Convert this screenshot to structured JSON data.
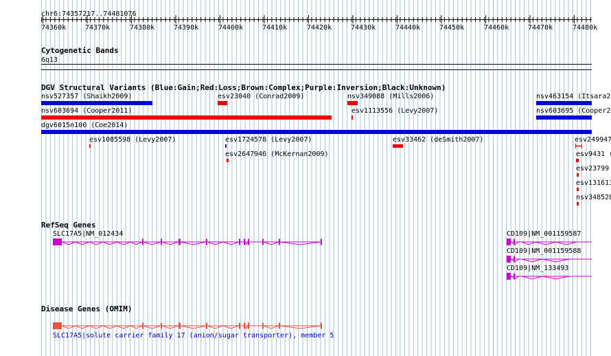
{
  "location": "chr6:74357217..74481076",
  "ruler": {
    "ticks": [
      "74360k",
      "74370k",
      "74380k",
      "74390k",
      "74400k",
      "74410k",
      "74420k",
      "74430k",
      "74440k",
      "74450k",
      "74460k",
      "74470k",
      "74480k"
    ]
  },
  "tracks": {
    "cytobands": {
      "title": "Cytogenetic Bands",
      "band": "6q13"
    },
    "dgv": {
      "title": "DGV Structural Variants (Blue:Gain;Red:Loss;Brown:Complex;Purple:Inversion;Black:Unknown)",
      "features": [
        {
          "label": "nsv527357 (Shaikh2009)",
          "type": "gain"
        },
        {
          "label": "esv23040 (Conrad2009)",
          "type": "loss"
        },
        {
          "label": "nsv349088 (Mills2006)",
          "type": "loss"
        },
        {
          "label": "nsv463154 (Itsara2",
          "type": "gain"
        },
        {
          "label": "nsv603694 (Cooper2011)",
          "type": "loss"
        },
        {
          "label": "esv1113556 (Levy2007)",
          "type": "loss"
        },
        {
          "label": "nsv603695 (Cooper2",
          "type": "gain"
        },
        {
          "label": "dgv6015n100 (Coe2014)",
          "type": "gain"
        },
        {
          "label": "esv1085598 (Levy2007)",
          "type": "loss"
        },
        {
          "label": "esv1724578 (Levy2007)",
          "type": "gain"
        },
        {
          "label": "esv33462 (deSmith2007)",
          "type": "loss"
        },
        {
          "label": "esv249947",
          "type": "loss"
        },
        {
          "label": "esv2647946 (McKernan2009)",
          "type": "loss"
        },
        {
          "label": "esv9431 (",
          "type": "loss"
        },
        {
          "label": "esv23799",
          "type": "loss"
        },
        {
          "label": "esv131613",
          "type": "loss"
        },
        {
          "label": "nsv348528",
          "type": "loss"
        }
      ]
    },
    "refseq": {
      "title": "RefSeq Genes",
      "genes": [
        "SLC17A5|NM_012434",
        "CD109|NM_001159587",
        "CD109|NM_001159588",
        "CD109|NM_133493"
      ]
    },
    "omim": {
      "title": "Disease Genes (OMIM)",
      "genes": [
        "SLC17A5|solute carrier family 17 (anion/sugar transporter), member 5"
      ]
    }
  },
  "colors": {
    "gain": "#0000dd",
    "loss": "#ee0000",
    "refseq": "#cc00cc",
    "omim": "#e8553c",
    "grid": "#a9c7d6"
  }
}
